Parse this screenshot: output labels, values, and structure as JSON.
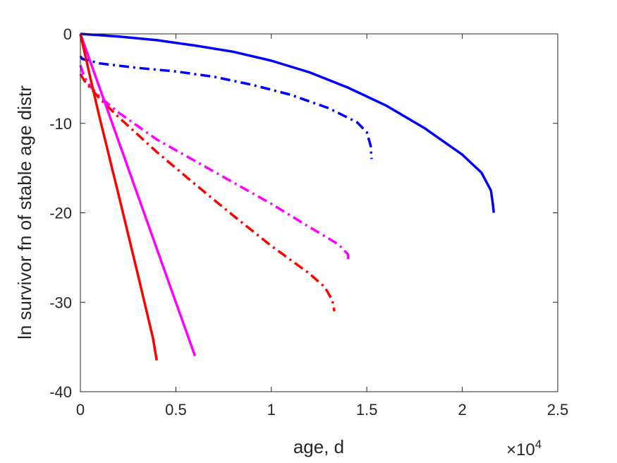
{
  "chart_data": {
    "type": "line",
    "title": "",
    "xlabel": "age, d",
    "ylabel": "ln survivor fn of stable age distr",
    "x_exponent_label": {
      "base": "×10",
      "exp": "4"
    },
    "xlim": [
      0,
      25000
    ],
    "ylim": [
      -40,
      0
    ],
    "xticks": [
      0,
      5000,
      10000,
      15000,
      20000,
      25000
    ],
    "xtick_labels": [
      "0",
      "0.5",
      "1",
      "1.5",
      "2",
      "2.5"
    ],
    "yticks": [
      0,
      -10,
      -20,
      -30,
      -40
    ],
    "ytick_labels": [
      "0",
      "-10",
      "-20",
      "-30",
      "-40"
    ],
    "grid": false,
    "box": true,
    "series": [
      {
        "color": "#0000ff",
        "style": "solid",
        "x": [
          0,
          2000,
          4000,
          6000,
          8000,
          10000,
          12000,
          14000,
          16000,
          18000,
          20000,
          21000,
          21500,
          21600,
          21650
        ],
        "y": [
          0,
          -0.3,
          -0.7,
          -1.3,
          -2.0,
          -3.0,
          -4.3,
          -6.0,
          -8.0,
          -10.5,
          -13.5,
          -15.5,
          -17.5,
          -19.0,
          -20.0
        ]
      },
      {
        "color": "#0000ff",
        "style": "dashdot",
        "x": [
          0,
          100,
          500,
          1000,
          3000,
          5000,
          7000,
          9000,
          11000,
          13000,
          14500,
          15000,
          15200,
          15250
        ],
        "y": [
          -2.5,
          -2.8,
          -3.0,
          -3.3,
          -3.8,
          -4.2,
          -4.8,
          -5.7,
          -6.8,
          -8.3,
          -9.9,
          -11.0,
          -12.5,
          -14.0
        ]
      },
      {
        "color": "#ff00ff",
        "style": "dashdot",
        "x": [
          0,
          200,
          500,
          1000,
          2000,
          4000,
          6000,
          8000,
          10000,
          12000,
          13500,
          14000,
          14050
        ],
        "y": [
          -3.5,
          -4.8,
          -5.8,
          -7.0,
          -8.8,
          -11.8,
          -14.2,
          -16.6,
          -19.0,
          -21.6,
          -23.5,
          -24.6,
          -25.5
        ]
      },
      {
        "color": "#ff0000",
        "style": "dashdot",
        "x": [
          0,
          200,
          500,
          1000,
          2000,
          4000,
          6000,
          8000,
          10000,
          12000,
          12800,
          13200,
          13300
        ],
        "y": [
          -4.5,
          -5.2,
          -6.0,
          -7.2,
          -9.3,
          -13.2,
          -16.8,
          -20.3,
          -23.7,
          -26.8,
          -28.3,
          -29.8,
          -31.0
        ]
      },
      {
        "color": "#ff00ff",
        "style": "solid",
        "x": [
          0,
          1000,
          2000,
          3000,
          4000,
          5000,
          6000
        ],
        "y": [
          0,
          -6.0,
          -12.0,
          -18.0,
          -24.0,
          -30.0,
          -36.0
        ]
      },
      {
        "color": "#ff0000",
        "style": "solid",
        "x": [
          0,
          500,
          1000,
          2000,
          3000,
          3800,
          4000
        ],
        "y": [
          0,
          -4.7,
          -9.3,
          -18.0,
          -26.8,
          -34.0,
          -36.5
        ]
      }
    ]
  }
}
